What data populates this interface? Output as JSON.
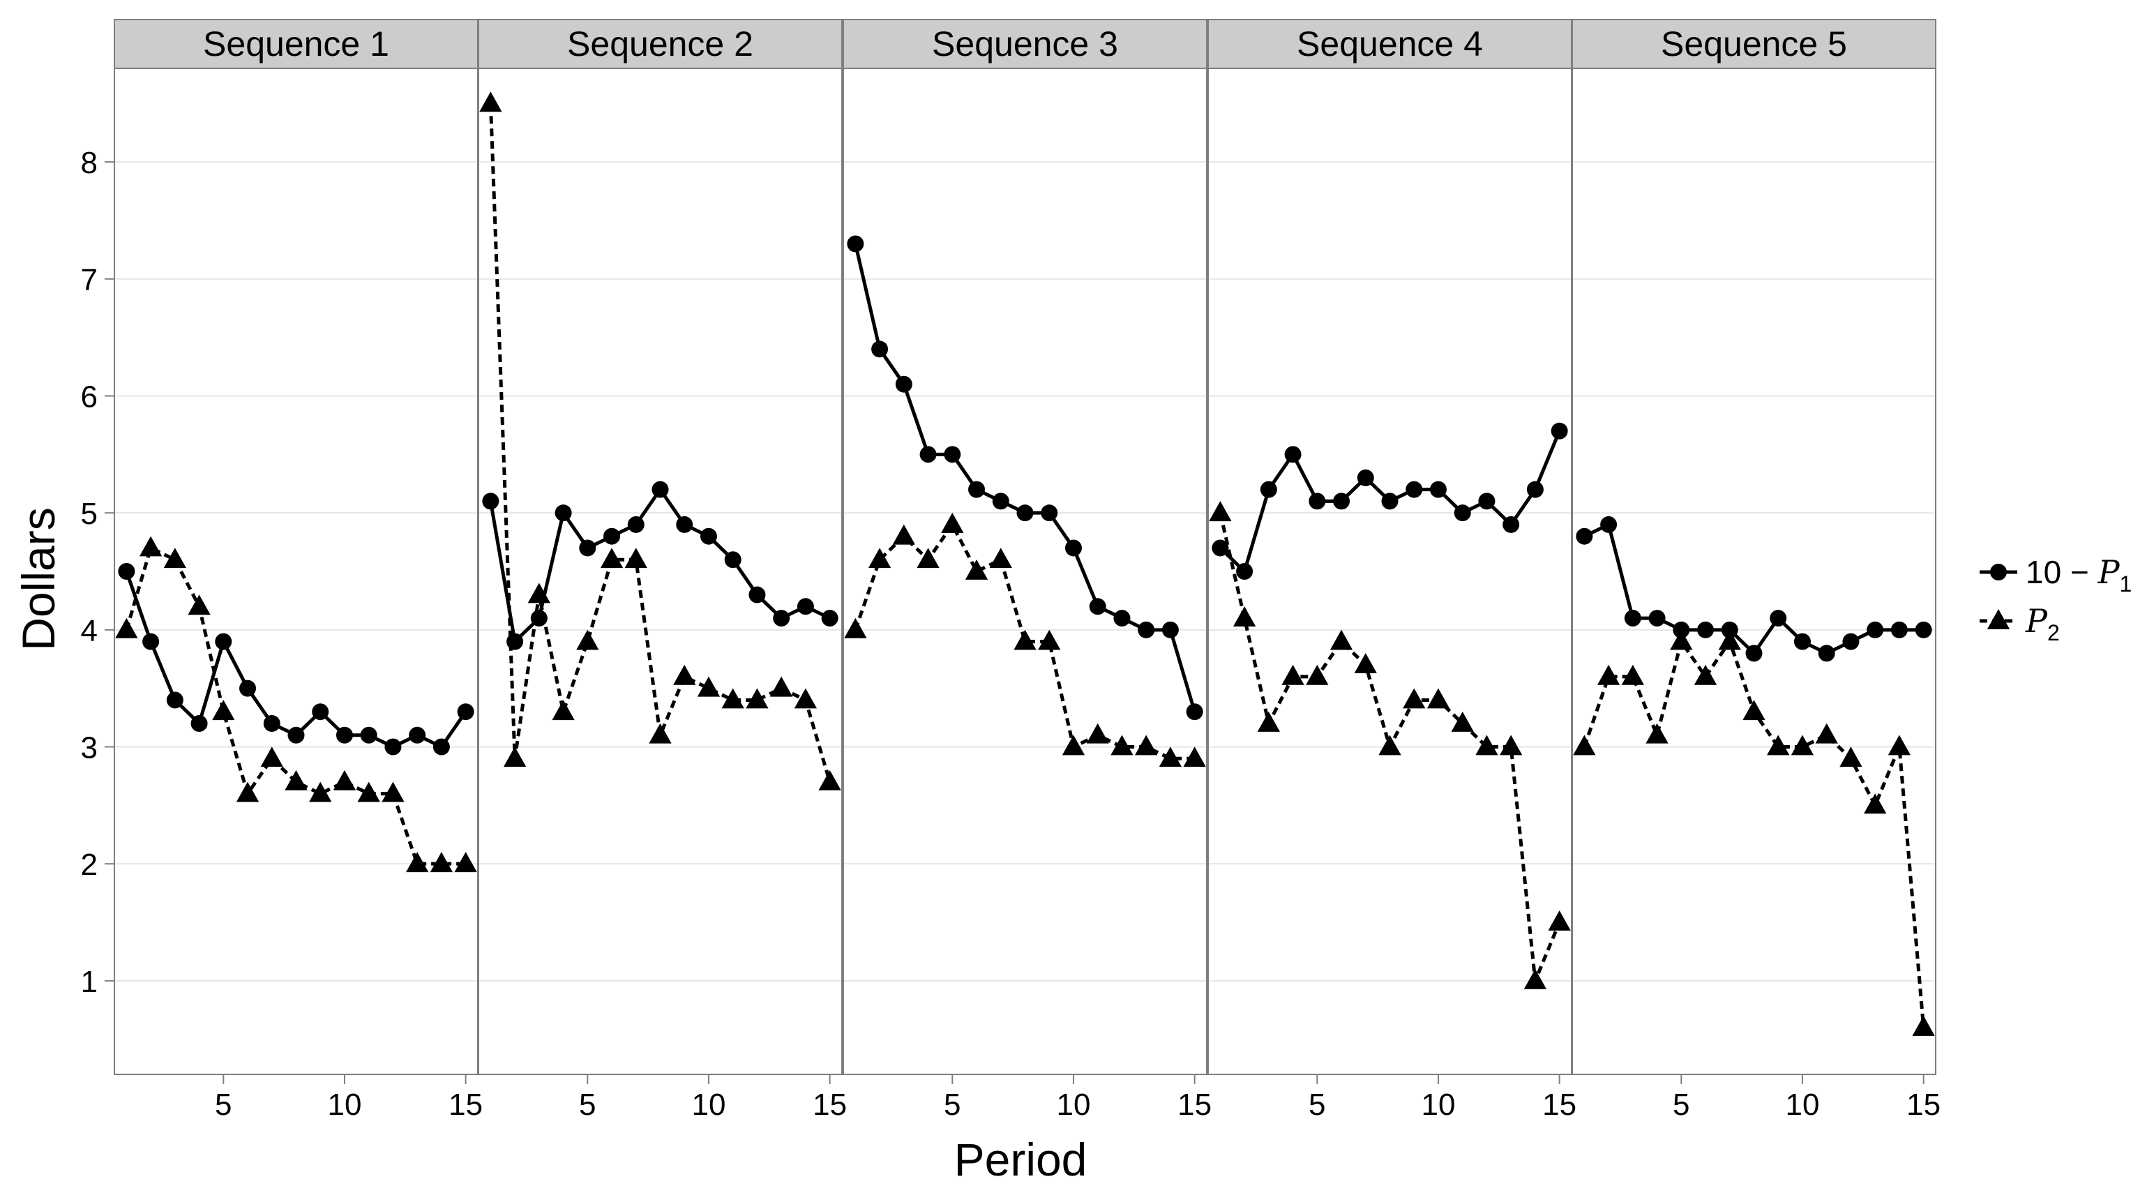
{
  "chart_data": {
    "type": "line",
    "xlabel": "Period",
    "ylabel": "Dollars",
    "xlim": [
      0.5,
      15.5
    ],
    "ylim": [
      0.2,
      8.8
    ],
    "xticks": [
      5,
      10,
      15
    ],
    "yticks": [
      1,
      2,
      3,
      4,
      5,
      6,
      7,
      8
    ],
    "grid": true,
    "legend_position": "right",
    "colors": {
      "line": "#000000",
      "strip": "#cccccc",
      "border": "#7f7f7f",
      "grid": "#e6e6e6"
    },
    "legend": [
      {
        "prefix": "10 − ",
        "symbol": "P",
        "subscript": "1",
        "marker": "circle",
        "linestyle": "solid"
      },
      {
        "prefix": "",
        "symbol": "P",
        "subscript": "2",
        "marker": "triangle",
        "linestyle": "dashed"
      }
    ],
    "x": [
      1,
      2,
      3,
      4,
      5,
      6,
      7,
      8,
      9,
      10,
      11,
      12,
      13,
      14,
      15
    ],
    "panels": [
      {
        "title": "Sequence 1",
        "series": [
          {
            "values": [
              4.5,
              3.9,
              3.4,
              3.2,
              3.9,
              3.5,
              3.2,
              3.1,
              3.3,
              3.1,
              3.1,
              3.0,
              3.1,
              3.0,
              3.3
            ]
          },
          {
            "values": [
              4.0,
              4.7,
              4.6,
              4.2,
              3.3,
              2.6,
              2.9,
              2.7,
              2.6,
              2.7,
              2.6,
              2.6,
              2.0,
              2.0,
              2.0
            ]
          }
        ]
      },
      {
        "title": "Sequence 2",
        "series": [
          {
            "values": [
              5.1,
              3.9,
              4.1,
              5.0,
              4.7,
              4.8,
              4.9,
              5.2,
              4.9,
              4.8,
              4.6,
              4.3,
              4.1,
              4.2,
              4.1
            ]
          },
          {
            "values": [
              8.5,
              2.9,
              4.3,
              3.3,
              3.9,
              4.6,
              4.6,
              3.1,
              3.6,
              3.5,
              3.4,
              3.4,
              3.5,
              3.4,
              2.7
            ]
          }
        ]
      },
      {
        "title": "Sequence 3",
        "series": [
          {
            "values": [
              7.3,
              6.4,
              6.1,
              5.5,
              5.5,
              5.2,
              5.1,
              5.0,
              5.0,
              4.7,
              4.2,
              4.1,
              4.0,
              4.0,
              3.3
            ]
          },
          {
            "values": [
              4.0,
              4.6,
              4.8,
              4.6,
              4.9,
              4.5,
              4.6,
              3.9,
              3.9,
              3.0,
              3.1,
              3.0,
              3.0,
              2.9,
              2.9
            ]
          }
        ]
      },
      {
        "title": "Sequence 4",
        "series": [
          {
            "values": [
              4.7,
              4.5,
              5.2,
              5.5,
              5.1,
              5.1,
              5.3,
              5.1,
              5.2,
              5.2,
              5.0,
              5.1,
              4.9,
              5.2,
              5.7
            ]
          },
          {
            "values": [
              5.0,
              4.1,
              3.2,
              3.6,
              3.6,
              3.9,
              3.7,
              3.0,
              3.4,
              3.4,
              3.2,
              3.0,
              3.0,
              1.0,
              1.5
            ]
          }
        ]
      },
      {
        "title": "Sequence 5",
        "series": [
          {
            "values": [
              4.8,
              4.9,
              4.1,
              4.1,
              4.0,
              4.0,
              4.0,
              3.8,
              4.1,
              3.9,
              3.8,
              3.9,
              4.0,
              4.0,
              4.0
            ]
          },
          {
            "values": [
              3.0,
              3.6,
              3.6,
              3.1,
              3.9,
              3.6,
              3.9,
              3.3,
              3.0,
              3.0,
              3.1,
              2.9,
              2.5,
              3.0,
              0.6
            ]
          }
        ]
      }
    ]
  }
}
